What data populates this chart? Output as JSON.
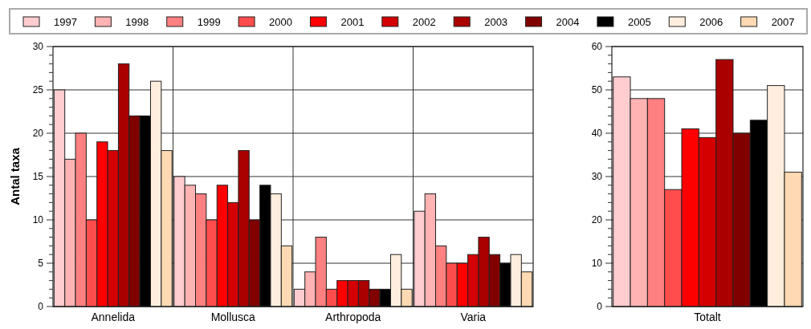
{
  "chart_data": [
    {
      "type": "bar",
      "ylabel": "Antal taxa",
      "categories": [
        "Annelida",
        "Mollusca",
        "Arthropoda",
        "Varia"
      ],
      "ylim": [
        0,
        30
      ],
      "yticks": [
        0,
        {
          "value": 1,
          "label": null
        },
        {
          "value": 2,
          "label": null
        },
        {
          "value": 3,
          "label": null
        },
        {
          "value": 4,
          "label": null
        },
        5,
        {
          "value": 6,
          "label": null
        },
        {
          "value": 7,
          "label": null
        },
        {
          "value": 8,
          "label": null
        },
        {
          "value": 9,
          "label": null
        },
        10,
        {
          "value": 11,
          "label": null
        },
        {
          "value": 12,
          "label": null
        },
        {
          "value": 13,
          "label": null
        },
        {
          "value": 14,
          "label": null
        },
        15,
        {
          "value": 16,
          "label": null
        },
        {
          "value": 17,
          "label": null
        },
        {
          "value": 18,
          "label": null
        },
        {
          "value": 19,
          "label": null
        },
        20,
        {
          "value": 21,
          "label": null
        },
        {
          "value": 22,
          "label": null
        },
        {
          "value": 23,
          "label": null
        },
        {
          "value": 24,
          "label": null
        },
        25,
        {
          "value": 26,
          "label": null
        },
        {
          "value": 27,
          "label": null
        },
        {
          "value": 28,
          "label": null
        },
        {
          "value": 29,
          "label": null
        },
        30
      ],
      "grid": true,
      "legend": "top",
      "series": [
        {
          "name": "1997",
          "color": "#ffccd0",
          "values": [
            25,
            15,
            2,
            11
          ]
        },
        {
          "name": "1998",
          "color": "#ffb3b3",
          "values": [
            17,
            14,
            4,
            13
          ]
        },
        {
          "name": "1999",
          "color": "#ff8080",
          "values": [
            20,
            13,
            8,
            7
          ]
        },
        {
          "name": "2000",
          "color": "#ff4d4d",
          "values": [
            10,
            10,
            2,
            5
          ]
        },
        {
          "name": "2001",
          "color": "#ff0000",
          "values": [
            19,
            14,
            3,
            5
          ]
        },
        {
          "name": "2002",
          "color": "#d40000",
          "values": [
            18,
            12,
            3,
            6
          ]
        },
        {
          "name": "2003",
          "color": "#aa0000",
          "values": [
            28,
            18,
            3,
            8
          ]
        },
        {
          "name": "2004",
          "color": "#800000",
          "values": [
            22,
            10,
            2,
            6
          ]
        },
        {
          "name": "2005",
          "color": "#000000",
          "values": [
            22,
            14,
            2,
            5
          ]
        },
        {
          "name": "2006",
          "color": "#ffeedd",
          "values": [
            26,
            13,
            6,
            6
          ]
        },
        {
          "name": "2007",
          "color": "#ffd9b3",
          "values": [
            18,
            7,
            2,
            4
          ]
        }
      ]
    },
    {
      "type": "bar",
      "xlabel": "Totalt",
      "categories": [
        null,
        null,
        null,
        null,
        null,
        null,
        null,
        null,
        null,
        null,
        null
      ],
      "values": [
        53,
        48,
        48,
        27,
        41,
        39,
        57,
        40,
        43,
        51,
        31
      ],
      "colors": [
        "#ffccd0",
        "#ffb3b3",
        "#ff8080",
        "#ff4d4d",
        "#ff0000",
        "#d40000",
        "#aa0000",
        "#800000",
        "#000000",
        "#ffeedd",
        "#ffd9b3"
      ],
      "ylim": [
        0,
        60
      ],
      "yticks": [
        0,
        {
          "value": 2,
          "label": null
        },
        {
          "value": 4,
          "label": null
        },
        {
          "value": 6,
          "label": null
        },
        {
          "value": 8,
          "label": null
        },
        10,
        {
          "value": 12,
          "label": null
        },
        {
          "value": 14,
          "label": null
        },
        {
          "value": 16,
          "label": null
        },
        {
          "value": 18,
          "label": null
        },
        20,
        {
          "value": 22,
          "label": null
        },
        {
          "value": 24,
          "label": null
        },
        {
          "value": 26,
          "label": null
        },
        {
          "value": 28,
          "label": null
        },
        30,
        {
          "value": 32,
          "label": null
        },
        {
          "value": 34,
          "label": null
        },
        {
          "value": 36,
          "label": null
        },
        {
          "value": 38,
          "label": null
        },
        40,
        {
          "value": 42,
          "label": null
        },
        {
          "value": 44,
          "label": null
        },
        {
          "value": 46,
          "label": null
        },
        {
          "value": 48,
          "label": null
        },
        50,
        {
          "value": 52,
          "label": null
        },
        {
          "value": 54,
          "label": null
        },
        {
          "value": 56,
          "label": null
        },
        {
          "value": 58,
          "label": null
        },
        60
      ],
      "grid": "y"
    }
  ]
}
